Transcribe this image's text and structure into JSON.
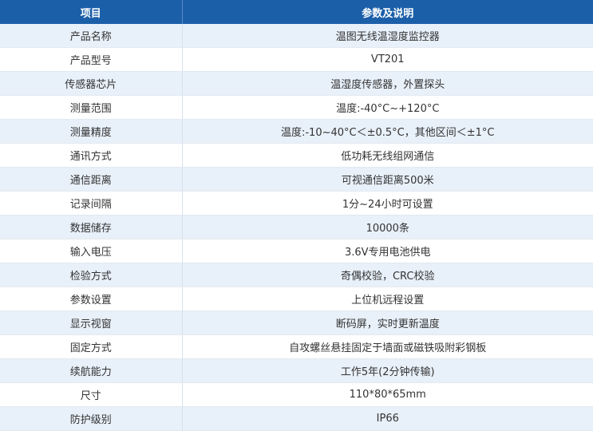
{
  "header": {
    "item_label": "项目",
    "value_label": "参数及说明"
  },
  "rows": [
    {
      "item": "产品名称",
      "value": "温图无线温湿度监控器"
    },
    {
      "item": "产品型号",
      "value": "VT201"
    },
    {
      "item": "传感器芯片",
      "value": "温湿度传感器，外置探头"
    },
    {
      "item": "测量范围",
      "value": "温度:-40°C~+120°C"
    },
    {
      "item": "测量精度",
      "value": "温度:-10~40°C＜±0.5°C，其他区间＜±1°C"
    },
    {
      "item": "通讯方式",
      "value": "低功耗无线组网通信"
    },
    {
      "item": "通信距离",
      "value": "可视通信距离500米"
    },
    {
      "item": "记录间隔",
      "value": "1分~24小时可设置"
    },
    {
      "item": "数据储存",
      "value": "10000条"
    },
    {
      "item": "输入电压",
      "value": "3.6V专用电池供电"
    },
    {
      "item": "检验方式",
      "value": "奇偶校验，CRC校验"
    },
    {
      "item": "参数设置",
      "value": "上位机远程设置"
    },
    {
      "item": "显示视窗",
      "value": "断码屏，实时更新温度"
    },
    {
      "item": "固定方式",
      "value": "自攻螺丝悬挂固定于墙面或磁铁吸附彩钢板"
    },
    {
      "item": "续航能力",
      "value": "工作5年(2分钟传输)"
    },
    {
      "item": "尺寸",
      "value": "110*80*65mm"
    },
    {
      "item": "防护级别",
      "value": "IP66"
    }
  ],
  "colors": {
    "header_bg": "#1c5fa9",
    "header_text": "#ffffff",
    "stripe_bg": "#e8f0f9",
    "row_bg": "#ffffff",
    "text": "#333333"
  }
}
